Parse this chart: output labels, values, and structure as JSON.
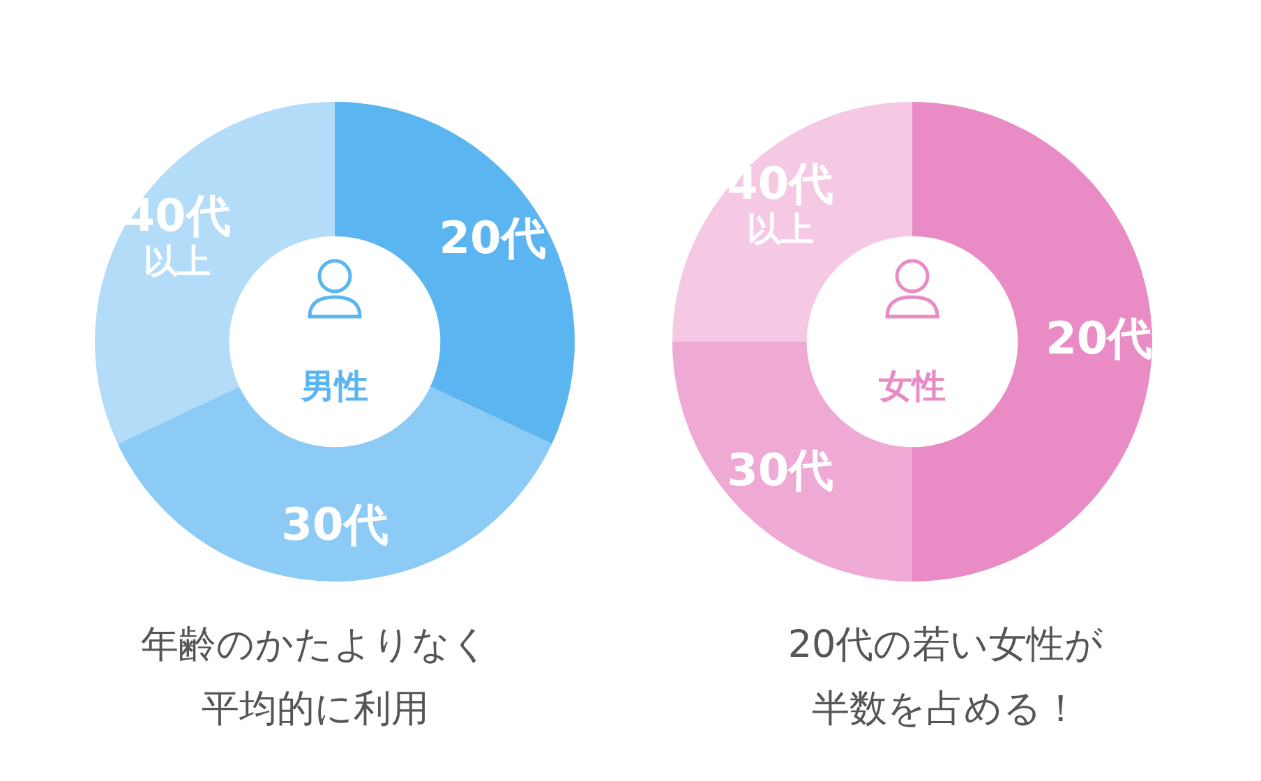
{
  "chart_data": [
    {
      "type": "donut",
      "title": "男性",
      "categories": [
        "20代",
        "30代",
        "40代以上"
      ],
      "values": [
        32,
        36,
        32
      ],
      "colors": [
        "#5bb5f0",
        "#8ccbf5",
        "#b3dcf8"
      ],
      "legend": false,
      "annotations": [
        "年齢のかたよりなく平均的に利用"
      ]
    },
    {
      "type": "donut",
      "title": "女性",
      "categories": [
        "20代",
        "30代",
        "40代以上"
      ],
      "values": [
        50,
        25,
        25
      ],
      "colors": [
        "#e98cc6",
        "#eeaad4",
        "#f5c9e4"
      ],
      "legend": false,
      "annotations": [
        "20代の若い女性が半数を占める！"
      ]
    }
  ]
}
